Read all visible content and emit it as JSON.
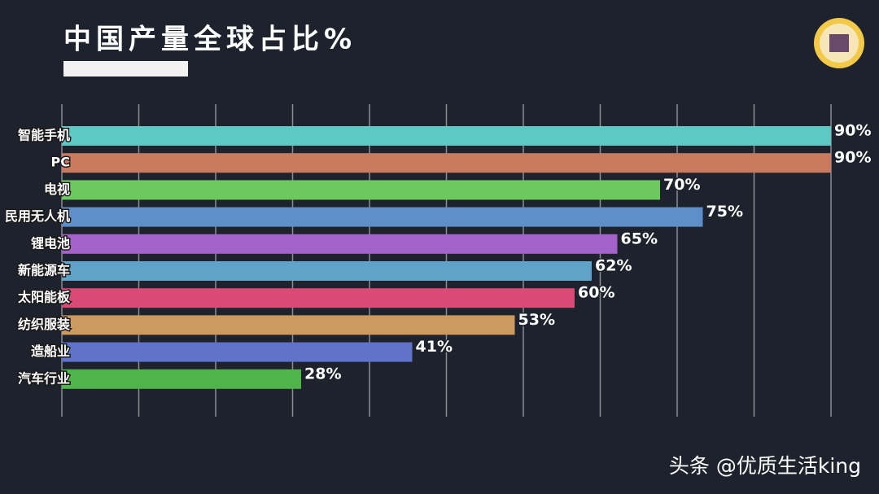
{
  "chart_data": {
    "type": "bar",
    "orientation": "horizontal",
    "title": "中国产量全球占比%",
    "categories": [
      "智能手机",
      "PC",
      "电视",
      "民用无人机",
      "锂电池",
      "新能源车",
      "太阳能板",
      "纺织服装",
      "造船业",
      "汽车行业"
    ],
    "values": [
      90,
      90,
      70,
      75,
      65,
      62,
      60,
      53,
      41,
      28
    ],
    "value_labels": [
      "90%",
      "90%",
      "70%",
      "75%",
      "65%",
      "62%",
      "60%",
      "53%",
      "41%",
      "28%"
    ],
    "colors": [
      "#5ec8c4",
      "#c97a5f",
      "#6cc95e",
      "#5f8fc9",
      "#a463c9",
      "#5fa3c9",
      "#d94a77",
      "#cc9a5f",
      "#5f74c9",
      "#4fb54a"
    ],
    "xlim": [
      0,
      90
    ],
    "xticks": [
      0,
      9,
      18,
      27,
      36,
      45,
      54,
      63,
      72,
      81,
      90
    ],
    "grid": true
  },
  "watermark": "头条 @优质生活king"
}
